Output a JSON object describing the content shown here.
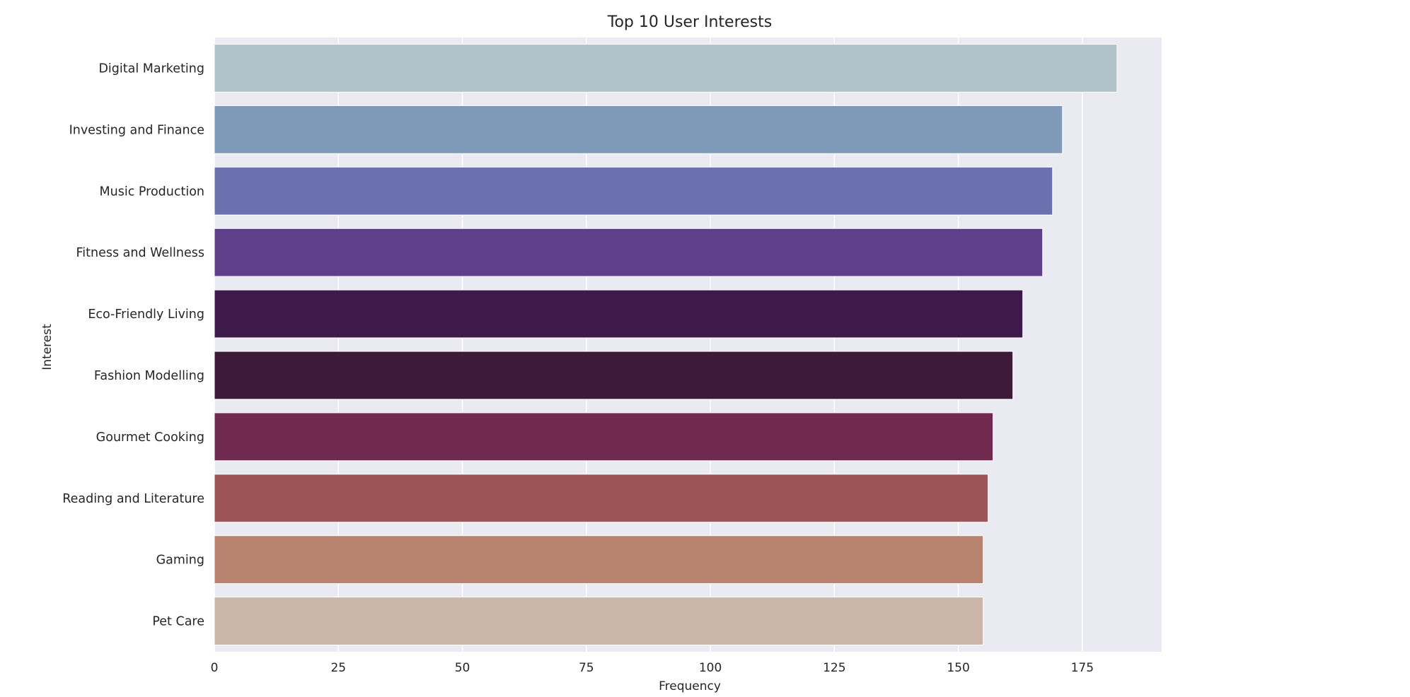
{
  "chart_data": {
    "type": "bar",
    "orientation": "horizontal",
    "title": "Top 10 User Interests",
    "xlabel": "Frequency",
    "ylabel": "Interest",
    "xlim": [
      0,
      191
    ],
    "xticks": [
      0,
      25,
      50,
      75,
      100,
      125,
      150,
      175
    ],
    "grid": true,
    "categories": [
      "Digital Marketing",
      "Investing and Finance",
      "Music Production",
      "Fitness and Wellness",
      "Eco-Friendly Living",
      "Fashion Modelling",
      "Gourmet Cooking",
      "Reading and Literature",
      "Gaming",
      "Pet Care"
    ],
    "values": [
      182,
      171,
      169,
      167,
      163,
      161,
      157,
      156,
      155,
      155
    ],
    "colors": [
      "#b1c2c9",
      "#7e9ab8",
      "#6b71ae",
      "#5e3f8a",
      "#3e1a4a",
      "#3e1a39",
      "#712a4f",
      "#9c5457",
      "#b7836f",
      "#cbb5a9"
    ],
    "plot_background": "#eaeaf2",
    "grid_color": "#ffffff"
  }
}
